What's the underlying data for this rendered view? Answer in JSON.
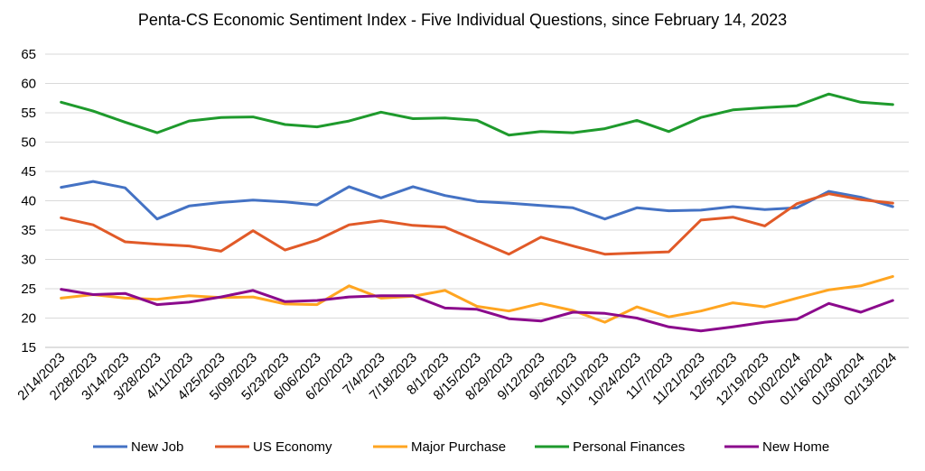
{
  "chart_data": {
    "type": "line",
    "title": "Penta-CS Economic Sentiment Index - Five Individual Questions, since February 14, 2023",
    "xlabel": "",
    "ylabel": "",
    "ylim": [
      15,
      65
    ],
    "yticks": [
      15,
      20,
      25,
      30,
      35,
      40,
      45,
      50,
      55,
      60,
      65
    ],
    "grid": "horizontal",
    "legend_position": "bottom",
    "categories": [
      "2/14/2023",
      "2/28/2023",
      "3/14/2023",
      "3/28/2023",
      "4/11/2023",
      "4/25/2023",
      "5/09/2023",
      "5/23/2023",
      "6/06/2023",
      "6/20/2023",
      "7/4/2023",
      "7/18/2023",
      "8/1/2023",
      "8/15/2023",
      "8/29/2023",
      "9/12/2023",
      "9/26/2023",
      "10/10/2023",
      "10/24/2023",
      "11/7/2023",
      "11/21/2023",
      "12/5/2023",
      "12/19/2023",
      "01/02/2024",
      "01/16/2024",
      "01/30/2024",
      "02/13/2024"
    ],
    "series": [
      {
        "name": "New Job",
        "color": "#4472C4",
        "values": [
          42.3,
          43.3,
          42.2,
          36.9,
          39.1,
          39.7,
          40.1,
          39.8,
          39.3,
          42.4,
          40.5,
          42.4,
          40.9,
          39.9,
          39.6,
          39.2,
          38.8,
          36.9,
          38.8,
          38.3,
          38.4,
          39.0,
          38.5,
          38.8,
          41.6,
          40.6,
          39.0
        ]
      },
      {
        "name": "US Economy",
        "color": "#E15A28",
        "values": [
          37.1,
          35.9,
          33.0,
          32.6,
          32.3,
          31.4,
          34.9,
          31.6,
          33.3,
          35.9,
          36.6,
          35.8,
          35.5,
          33.2,
          30.9,
          33.8,
          32.3,
          30.9,
          31.1,
          31.3,
          36.7,
          37.2,
          35.7,
          39.5,
          41.2,
          40.2,
          39.6
        ]
      },
      {
        "name": "Major Purchase",
        "color": "#FFA521",
        "values": [
          23.4,
          24.0,
          23.4,
          23.2,
          23.8,
          23.5,
          23.6,
          22.4,
          22.3,
          25.5,
          23.4,
          23.7,
          24.7,
          22.0,
          21.2,
          22.5,
          21.3,
          19.3,
          21.9,
          20.2,
          21.2,
          22.6,
          21.9,
          23.4,
          24.8,
          25.5,
          27.1
        ]
      },
      {
        "name": "Personal Finances",
        "color": "#1E9A2C",
        "values": [
          56.8,
          55.3,
          53.4,
          51.6,
          53.6,
          54.2,
          54.3,
          53.0,
          52.6,
          53.6,
          55.1,
          54.0,
          54.1,
          53.7,
          51.2,
          51.8,
          51.6,
          52.3,
          53.7,
          51.8,
          54.2,
          55.5,
          55.9,
          56.2,
          58.2,
          56.8,
          56.4
        ]
      },
      {
        "name": "New Home",
        "color": "#8B0A8C",
        "values": [
          24.9,
          24.0,
          24.2,
          22.3,
          22.7,
          23.6,
          24.7,
          22.8,
          23.0,
          23.6,
          23.8,
          23.8,
          21.7,
          21.5,
          19.9,
          19.5,
          21.0,
          20.8,
          20.0,
          18.5,
          17.8,
          18.5,
          19.3,
          19.8,
          22.5,
          21.0,
          23.0
        ]
      }
    ]
  }
}
